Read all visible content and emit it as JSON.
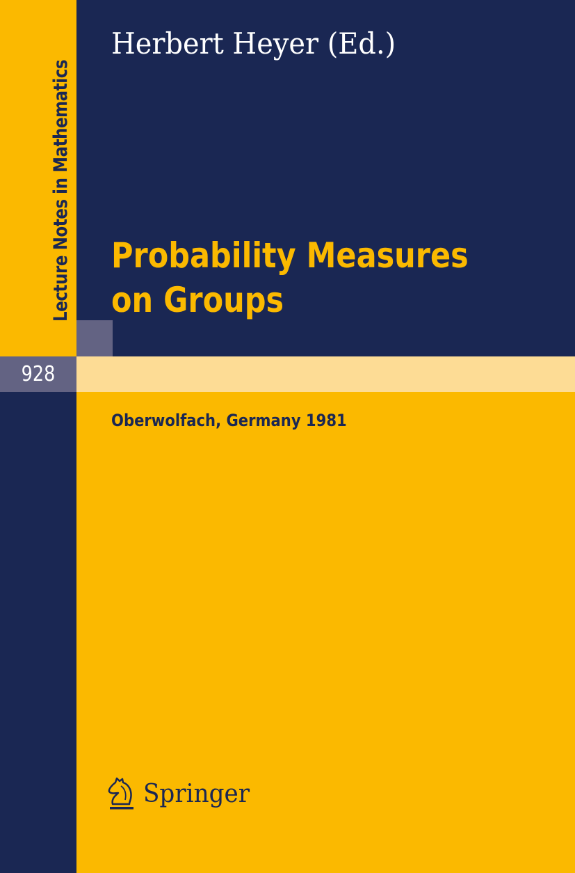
{
  "cover": {
    "series": "Lecture Notes in Mathematics",
    "volume": "928",
    "author": "Herbert Heyer (Ed.)",
    "title_line1": "Probability Measures",
    "title_line2": "on Groups",
    "place": "Oberwolfach, Germany 1981",
    "publisher": "Springer",
    "publisher_logo_icon": "knight-horse-icon"
  },
  "colors": {
    "navy": "#1a2753",
    "yellow": "#fbb900",
    "light_yellow": "#fddc95",
    "grey": "#636383"
  }
}
